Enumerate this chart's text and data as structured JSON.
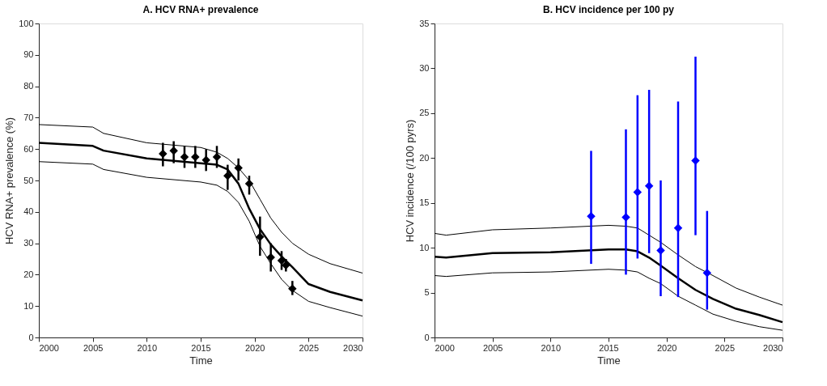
{
  "chart_data": [
    {
      "type": "line",
      "title": "A. HCV RNA+ prevalence",
      "xlabel": "Time",
      "ylabel": "HCV RNA+ prevalence (%)",
      "xlim": [
        2000,
        2030
      ],
      "xticks": [
        2000,
        2005,
        2010,
        2015,
        2020,
        2025,
        2030
      ],
      "ylim": [
        0,
        100
      ],
      "yticks": [
        0,
        10,
        20,
        30,
        40,
        50,
        60,
        70,
        80,
        90,
        100
      ],
      "grid": false,
      "series": [
        {
          "color": "#000000",
          "marker": "none",
          "x": [
            2000,
            2005,
            2006,
            2010,
            2015,
            2016.5,
            2017.5,
            2018.5,
            2019.5,
            2020.5,
            2021.5,
            2022.5,
            2023.5,
            2025,
            2027,
            2030
          ],
          "values": [
            62,
            61,
            59.5,
            57,
            55.5,
            55,
            53.5,
            49,
            41,
            34.5,
            29.6,
            25.8,
            22.4,
            17,
            14.5,
            11.8
          ]
        },
        {
          "color": "#000000",
          "marker": "none",
          "x": [
            2000,
            2005,
            2006,
            2010,
            2015,
            2016.5,
            2017.5,
            2018.5,
            2019.5,
            2020.5,
            2021.5,
            2022.5,
            2023.5,
            2025,
            2027,
            2030
          ],
          "values": [
            67.8,
            67,
            65,
            62,
            60.5,
            59,
            57,
            54,
            50,
            44,
            38,
            33.5,
            30,
            26.5,
            23.5,
            20.5
          ]
        },
        {
          "color": "#000000",
          "marker": "none",
          "x": [
            2000,
            2005,
            2006,
            2010,
            2015,
            2016.5,
            2017.5,
            2018.5,
            2019.5,
            2020.5,
            2021.5,
            2022.5,
            2023.5,
            2025,
            2027,
            2030
          ],
          "values": [
            56,
            55.2,
            53.5,
            51,
            49.5,
            48.5,
            46.5,
            43,
            37,
            29,
            23.5,
            18.5,
            15,
            11.5,
            9.5,
            6.8
          ]
        },
        {
          "type": "scatter",
          "color": "#000000",
          "marker": "diamond",
          "x": [
            2011.5,
            2012.5,
            2013.5,
            2014.5,
            2015.5,
            2016.5,
            2017.5,
            2018.5,
            2019.5,
            2020.5,
            2021.5,
            2022.5,
            2022.9,
            2023.5
          ],
          "values": [
            58.5,
            59.5,
            57.5,
            57.5,
            56.5,
            57.5,
            51.5,
            54,
            49,
            32,
            25.5,
            24.5,
            23,
            15.5
          ],
          "errors": [
            [
              54.5,
              62
            ],
            [
              55.5,
              62.5
            ],
            [
              54,
              61
            ],
            [
              54,
              61
            ],
            [
              53,
              60
            ],
            [
              54,
              61
            ],
            [
              47,
              55
            ],
            [
              50,
              57
            ],
            [
              45.5,
              51.5
            ],
            [
              26,
              38.5
            ],
            [
              21,
              30
            ],
            [
              21.5,
              27.5
            ],
            [
              21,
              25
            ],
            [
              13.5,
              18
            ]
          ]
        }
      ]
    },
    {
      "type": "line",
      "title": "B. HCV incidence per 100 py",
      "xlabel": "Time",
      "ylabel": "HCV incidence (/100 pyrs)",
      "xlim": [
        2000,
        2030
      ],
      "xticks": [
        2000,
        2005,
        2010,
        2015,
        2020,
        2025,
        2030
      ],
      "ylim": [
        0,
        35
      ],
      "yticks": [
        0,
        5,
        10,
        15,
        20,
        25,
        30,
        35
      ],
      "grid": false,
      "series": [
        {
          "color": "#000000",
          "marker": "none",
          "x": [
            2000,
            2001,
            2005,
            2010,
            2015,
            2016.5,
            2017.5,
            2018.5,
            2019.5,
            2021,
            2022.5,
            2024,
            2026,
            2028,
            2030
          ],
          "values": [
            9.0,
            8.9,
            9.4,
            9.5,
            9.8,
            9.8,
            9.6,
            8.9,
            8.0,
            6.6,
            5.3,
            4.3,
            3.2,
            2.5,
            1.7
          ]
        },
        {
          "color": "#000000",
          "marker": "none",
          "x": [
            2000,
            2001,
            2005,
            2010,
            2015,
            2016.5,
            2017.5,
            2018.5,
            2019.5,
            2021,
            2022.5,
            2024,
            2026,
            2028,
            2030
          ],
          "values": [
            11.6,
            11.4,
            12.0,
            12.2,
            12.5,
            12.4,
            12.2,
            11.4,
            10.6,
            9.2,
            7.9,
            6.9,
            5.5,
            4.5,
            3.6
          ]
        },
        {
          "color": "#000000",
          "marker": "none",
          "x": [
            2000,
            2001,
            2005,
            2010,
            2015,
            2016.5,
            2017.5,
            2018.5,
            2019.5,
            2021,
            2022.5,
            2024,
            2026,
            2028,
            2030
          ],
          "values": [
            6.9,
            6.8,
            7.2,
            7.3,
            7.6,
            7.5,
            7.3,
            6.6,
            6.0,
            4.6,
            3.6,
            2.6,
            1.8,
            1.2,
            0.8
          ]
        },
        {
          "type": "scatter",
          "color": "#0000ff",
          "marker": "diamond",
          "x": [
            2013.5,
            2016.5,
            2017.5,
            2018.5,
            2019.5,
            2021,
            2022.5,
            2023.5
          ],
          "values": [
            13.5,
            13.4,
            16.2,
            16.9,
            9.7,
            12.2,
            19.7,
            7.2
          ],
          "errors": [
            [
              8.2,
              20.8
            ],
            [
              7,
              23.2
            ],
            [
              8.8,
              27
            ],
            [
              9.4,
              27.6
            ],
            [
              4.6,
              17.5
            ],
            [
              4.5,
              26.3
            ],
            [
              11.4,
              31.3
            ],
            [
              3.1,
              14.1
            ]
          ]
        }
      ]
    }
  ]
}
